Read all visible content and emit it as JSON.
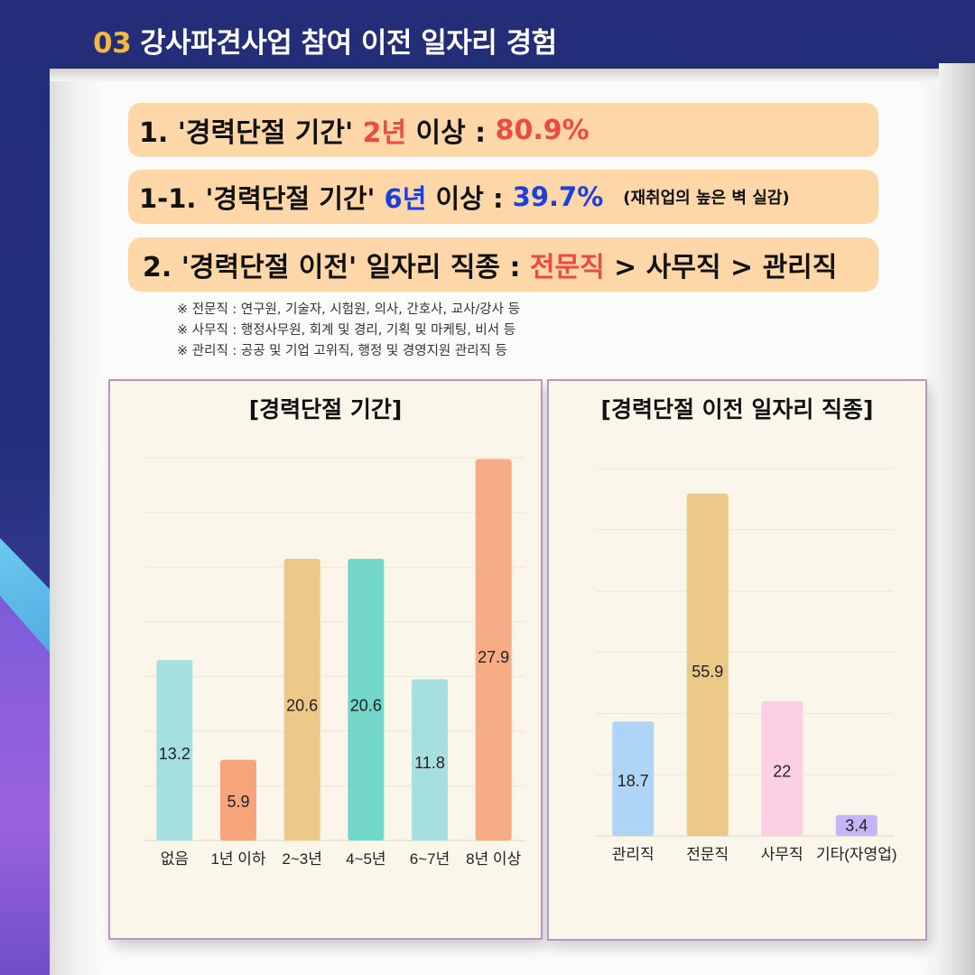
{
  "header": {
    "number": "03",
    "title": "강사파견사업 참여 이전 일자리 경험"
  },
  "highlights": [
    {
      "prefix": "1. '경력단절 기간' ",
      "accent": "2년",
      "middle": " 이상 : ",
      "value": "80.9%",
      "color": "#ee4a42"
    },
    {
      "prefix": "1-1. '경력단절 기간' ",
      "accent": "6년",
      "middle": " 이상 : ",
      "value": "39.7%",
      "note": "(재취업의 높은 벽 실감)",
      "color": "#1b3fe0"
    },
    {
      "prefix": "2. '경력단절 이전' 일자리 직종 : ",
      "accent": "전문직",
      "rest": " > 사무직 > 관리직",
      "color": "#ee4a42"
    }
  ],
  "footnotes": [
    "※ 전문직 : 연구원, 기술자, 시험원, 의사, 간호사, 교사/강사 등",
    "※ 사무직 : 행정사무원, 회계 및 경리, 기획 및 마케팅, 비서 등",
    "※ 관리직 : 공공 및 기업 고위직, 행정 및 경영지원 관리직 등"
  ],
  "chart_data": [
    {
      "type": "bar",
      "title": "[경력단절 기간]",
      "categories": [
        "없음",
        "1년 이하",
        "2~3년",
        "4~5년",
        "6~7년",
        "8년 이상"
      ],
      "values": [
        13.2,
        5.9,
        20.6,
        20.6,
        11.8,
        27.9
      ],
      "colors": [
        "#a6dfe0",
        "#f6a47c",
        "#ecc888",
        "#72d6c8",
        "#a6dfe0",
        "#f8ac86"
      ],
      "ylim": [
        0,
        28
      ],
      "grid": true,
      "xlabel": "",
      "ylabel": ""
    },
    {
      "type": "bar",
      "title": "[경력단절 이전 일자리 직종]",
      "categories": [
        "관리직",
        "전문직",
        "사무직",
        "기타(자영업)"
      ],
      "values": [
        18.7,
        55.9,
        22,
        3.4
      ],
      "colors": [
        "#aed4f6",
        "#ecc888",
        "#fbd0e2",
        "#c4b4f8"
      ],
      "ylim": [
        0,
        60
      ],
      "grid": true,
      "xlabel": "",
      "ylabel": ""
    }
  ]
}
